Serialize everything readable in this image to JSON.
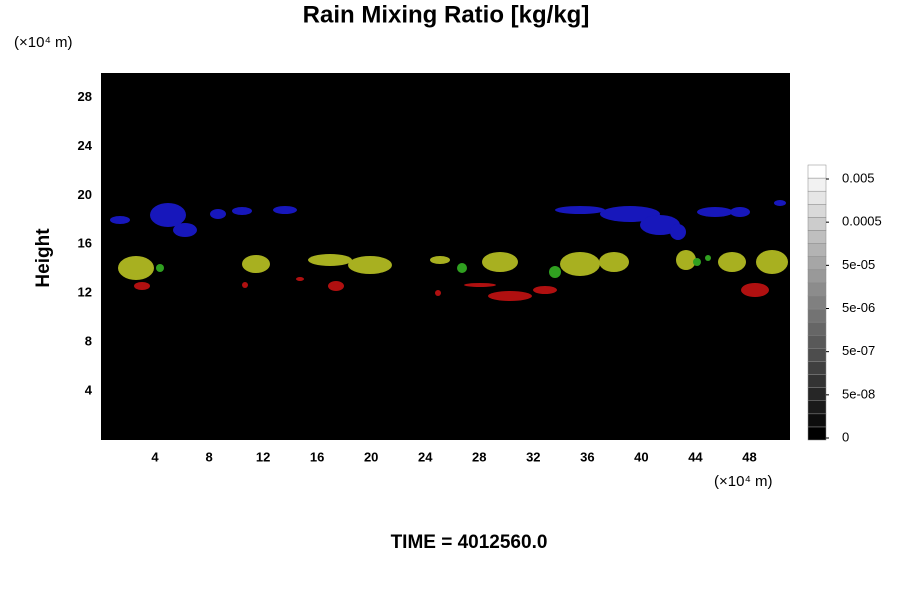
{
  "chart_data": {
    "type": "field",
    "title": "Rain Mixing Ratio [kg/kg]",
    "y_label": "Height",
    "y_unit": "(×10⁴ m)",
    "x_unit": "(×10⁴ m)",
    "footer": "TIME = 4012560.0",
    "xlim": [
      0,
      51
    ],
    "xticks": [
      4,
      8,
      12,
      16,
      20,
      24,
      28,
      32,
      36,
      40,
      44,
      48
    ],
    "ylim": [
      0,
      30
    ],
    "yticks": [
      4,
      8,
      12,
      16,
      20,
      24,
      28
    ],
    "colorbar_ticks": [
      0,
      {
        "value": 5e-08,
        "label": "5e-08"
      },
      {
        "value": 5e-07,
        "label": "5e-07"
      },
      {
        "value": 5e-06,
        "label": "5e-06"
      },
      {
        "value": 5e-05,
        "label": "5e-05"
      },
      0.0005,
      0.005
    ]
  }
}
